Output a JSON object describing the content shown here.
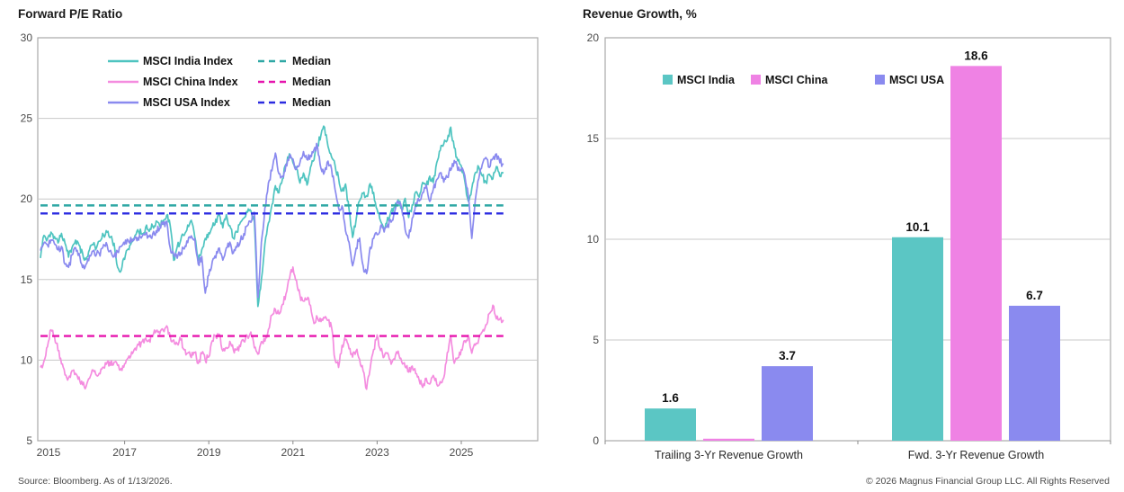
{
  "footer": {
    "source": "Source: Bloomberg. As of 1/13/2026.",
    "copyright": "© 2026 Magnus Financial Group LLC. All Rights Reserved"
  },
  "colors": {
    "india": "#4EC4C0",
    "china_line": "#F48CDF",
    "usa": "#8A8AEF",
    "india_median": "#2FA8A5",
    "china_median": "#E615AE",
    "usa_median": "#2B2BE0",
    "india_bar": "#5BC6C4",
    "china_bar": "#EF82E4",
    "usa_bar": "#8A8AEF",
    "grid": "#c8c8c8",
    "axis_border": "#a9a9a9",
    "tick_text": "#4a4a4a",
    "legend_text": "#111111"
  },
  "chart_data": [
    {
      "type": "line",
      "title": "Forward P/E Ratio",
      "xlabel": "",
      "ylabel": "",
      "ylim": [
        5,
        30
      ],
      "yticks": [
        5,
        10,
        15,
        20,
        25,
        30
      ],
      "xticks": [
        2015,
        2017,
        2019,
        2021,
        2023,
        2025
      ],
      "x_start_year": 2015,
      "x_points_per_year": 12,
      "grid": "horizontal",
      "legend_position": "top-inside",
      "median_label": "Median",
      "series": [
        {
          "name": "MSCI India Index",
          "color": "#4EC4C0",
          "median": 19.6,
          "median_color": "#2FA8A5",
          "values": [
            16.3,
            17.8,
            17.5,
            17.9,
            17.7,
            17.3,
            17.9,
            17.2,
            16.4,
            17.0,
            17.5,
            17.1,
            16.6,
            16.2,
            16.9,
            17.2,
            17.0,
            17.4,
            17.8,
            18.0,
            17.6,
            17.2,
            15.8,
            15.6,
            16.3,
            16.9,
            17.3,
            17.7,
            18.0,
            17.8,
            18.2,
            18.0,
            18.3,
            18.6,
            18.3,
            18.7,
            19.0,
            18.4,
            16.2,
            17.0,
            17.4,
            17.8,
            18.4,
            18.7,
            17.6,
            16.2,
            16.9,
            17.5,
            17.9,
            18.3,
            18.7,
            19.0,
            18.2,
            19.0,
            18.4,
            17.6,
            18.0,
            18.5,
            18.8,
            19.2,
            19.3,
            18.6,
            13.3,
            15.0,
            17.2,
            18.5,
            19.6,
            20.8,
            20.4,
            21.2,
            22.2,
            22.8,
            22.3,
            21.9,
            21.0,
            21.6,
            20.9,
            22.0,
            22.4,
            23.3,
            24.0,
            24.4,
            23.3,
            22.6,
            22.1,
            21.3,
            20.5,
            20.9,
            19.3,
            17.6,
            18.7,
            19.9,
            20.3,
            20.2,
            20.9,
            20.4,
            19.3,
            18.6,
            18.1,
            18.8,
            19.2,
            19.5,
            19.9,
            19.4,
            20.0,
            18.9,
            19.6,
            20.5,
            20.1,
            21.0,
            20.8,
            21.4,
            21.0,
            22.2,
            23.0,
            23.4,
            23.6,
            24.4,
            23.2,
            22.4,
            22.1,
            21.1,
            19.9,
            20.6,
            21.6,
            22.0,
            21.4,
            21.0,
            21.5,
            21.2,
            22.0,
            21.4,
            21.6
          ]
        },
        {
          "name": "MSCI China Index",
          "color": "#F48CDF",
          "median": 11.5,
          "median_color": "#E615AE",
          "values": [
            9.5,
            9.9,
            10.8,
            11.9,
            11.5,
            10.6,
            9.8,
            9.1,
            8.9,
            9.4,
            9.2,
            8.9,
            8.5,
            8.4,
            8.9,
            9.4,
            9.0,
            9.2,
            9.6,
            9.9,
            9.7,
            9.9,
            9.7,
            9.5,
            9.8,
            10.2,
            10.5,
            10.7,
            10.9,
            11.1,
            11.4,
            11.2,
            11.5,
            11.8,
            11.6,
            11.9,
            12.1,
            11.4,
            11.2,
            11.0,
            11.3,
            10.7,
            10.4,
            10.2,
            10.5,
            9.8,
            10.4,
            10.0,
            10.2,
            11.2,
            11.5,
            11.6,
            10.6,
            10.8,
            11.1,
            10.6,
            10.7,
            10.9,
            11.2,
            11.5,
            11.7,
            10.8,
            10.4,
            11.1,
            11.2,
            11.9,
            12.8,
            13.1,
            12.9,
            13.5,
            14.1,
            15.0,
            15.8,
            15.0,
            14.0,
            13.6,
            13.8,
            13.4,
            12.3,
            12.6,
            12.4,
            12.6,
            12.5,
            12.0,
            10.0,
            9.6,
            10.9,
            11.3,
            10.7,
            10.2,
            10.6,
            10.0,
            9.3,
            8.2,
            9.4,
            10.6,
            11.6,
            10.6,
            10.2,
            10.5,
            9.8,
            10.1,
            10.6,
            9.9,
            9.6,
            9.3,
            9.6,
            9.2,
            8.8,
            8.3,
            8.9,
            8.5,
            9.1,
            8.5,
            8.7,
            8.9,
            10.5,
            11.5,
            9.8,
            10.1,
            10.6,
            11.2,
            11.5,
            10.4,
            10.9,
            11.3,
            11.8,
            12.2,
            12.9,
            13.4,
            12.5,
            12.6,
            12.5
          ]
        },
        {
          "name": "MSCI USA Index",
          "color": "#8A8AEF",
          "median": 19.1,
          "median_color": "#2B2BE0",
          "values": [
            16.8,
            17.3,
            17.1,
            17.4,
            17.2,
            16.8,
            17.1,
            15.9,
            15.7,
            16.5,
            17.0,
            16.6,
            15.7,
            15.9,
            16.5,
            16.8,
            16.6,
            16.5,
            17.2,
            17.1,
            16.8,
            16.4,
            16.7,
            17.0,
            17.2,
            17.5,
            17.4,
            17.6,
            17.5,
            17.7,
            17.8,
            17.6,
            17.8,
            18.0,
            18.2,
            18.4,
            18.6,
            17.0,
            16.5,
            16.3,
            16.7,
            16.9,
            17.3,
            17.7,
            17.5,
            15.9,
            16.4,
            14.2,
            15.3,
            16.1,
            16.4,
            16.9,
            16.2,
            17.0,
            17.3,
            16.6,
            17.0,
            17.4,
            17.8,
            18.3,
            18.6,
            19.2,
            13.9,
            17.3,
            19.4,
            21.0,
            21.8,
            22.9,
            21.6,
            21.4,
            22.1,
            22.6,
            22.5,
            21.8,
            22.3,
            22.9,
            22.4,
            22.7,
            23.1,
            23.3,
            21.9,
            21.7,
            22.4,
            21.9,
            20.6,
            19.4,
            19.6,
            18.0,
            17.3,
            15.9,
            16.9,
            17.6,
            15.8,
            15.4,
            17.0,
            17.5,
            17.8,
            18.3,
            17.9,
            18.4,
            18.6,
            19.2,
            19.8,
            19.4,
            18.1,
            17.6,
            18.8,
            19.7,
            19.9,
            20.4,
            20.9,
            19.8,
            20.6,
            21.2,
            21.6,
            21.0,
            21.4,
            21.8,
            22.4,
            21.8,
            21.9,
            21.5,
            20.2,
            17.6,
            20.0,
            21.3,
            22.2,
            22.6,
            22.0,
            22.5,
            22.8,
            22.3,
            22.2
          ]
        }
      ]
    },
    {
      "type": "bar",
      "title": "Revenue Growth, %",
      "xlabel": "",
      "ylabel": "",
      "ylim": [
        0,
        20
      ],
      "yticks": [
        0,
        5,
        10,
        15,
        20
      ],
      "grid": "horizontal",
      "legend_position": "top-inside",
      "categories": [
        "Trailing 3-Yr Revenue Growth",
        "Fwd. 3-Yr Revenue Growth"
      ],
      "series": [
        {
          "name": "MSCI India",
          "color": "#5BC6C4",
          "values": [
            1.6,
            10.1
          ],
          "labels": [
            "1.6",
            "10.1"
          ]
        },
        {
          "name": "MSCI China",
          "color": "#EF82E4",
          "values": [
            0.1,
            18.6
          ],
          "labels": [
            "",
            "18.6"
          ]
        },
        {
          "name": "MSCI USA",
          "color": "#8A8AEF",
          "values": [
            3.7,
            6.7
          ],
          "labels": [
            "3.7",
            "6.7"
          ]
        }
      ]
    }
  ]
}
